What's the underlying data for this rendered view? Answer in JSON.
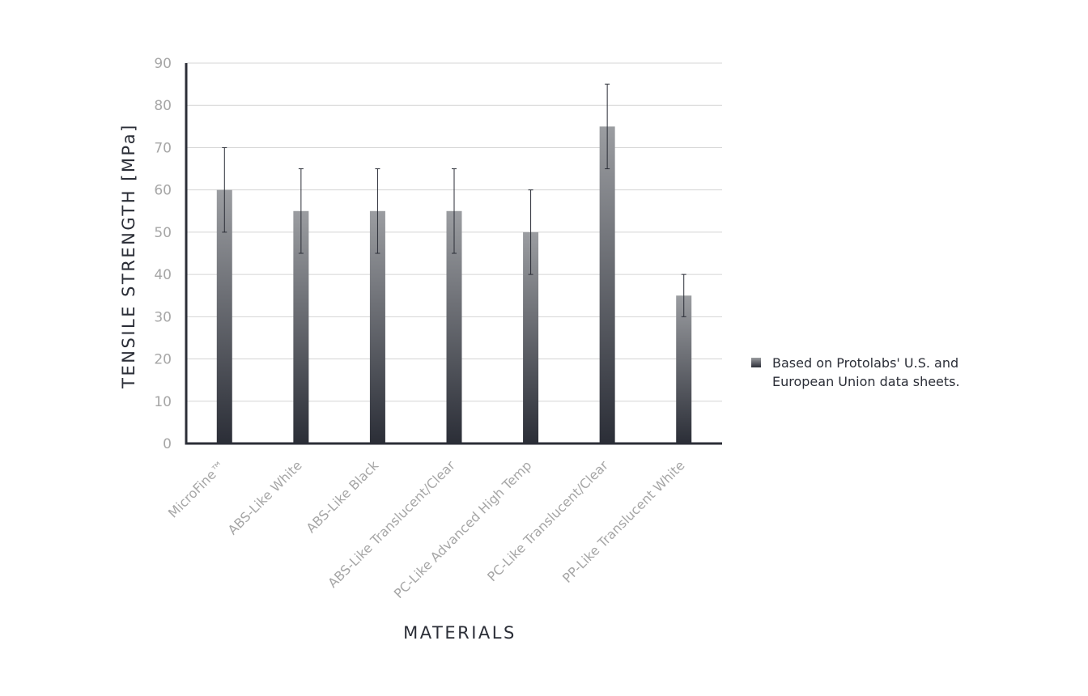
{
  "chart_data": {
    "type": "bar",
    "ylabel": "TENSILE STRENGTH [MPa]",
    "xlabel": "MATERIALS",
    "categories": [
      "MicroFine™",
      "ABS-Like White",
      "ABS-Like Black",
      "ABS-Like Translucent/Clear",
      "PC-Like Advanced High Temp",
      "PC-Like Translucent/Clear",
      "PP-Like Translucent White"
    ],
    "values": [
      60,
      55,
      55,
      55,
      50,
      75,
      35
    ],
    "error_low": [
      50,
      45,
      45,
      45,
      40,
      65,
      30
    ],
    "error_high": [
      70,
      65,
      65,
      65,
      60,
      85,
      40
    ],
    "yticks": [
      0,
      10,
      20,
      30,
      40,
      50,
      60,
      70,
      80,
      90
    ],
    "ylim": [
      0,
      90
    ],
    "grid": true,
    "legend_position": "right",
    "legend": [
      "Based on Protolabs' U.S. and European Union data sheets."
    ],
    "colors": {
      "bar_top": "#9b9da1",
      "bar_bottom": "#2b2e37",
      "axis": "#2b2e37",
      "grid": "#d4d4d4",
      "tick_label": "#a6a6a6",
      "axis_title": "#2b2e37",
      "error_bar": "#2b2e37"
    }
  }
}
